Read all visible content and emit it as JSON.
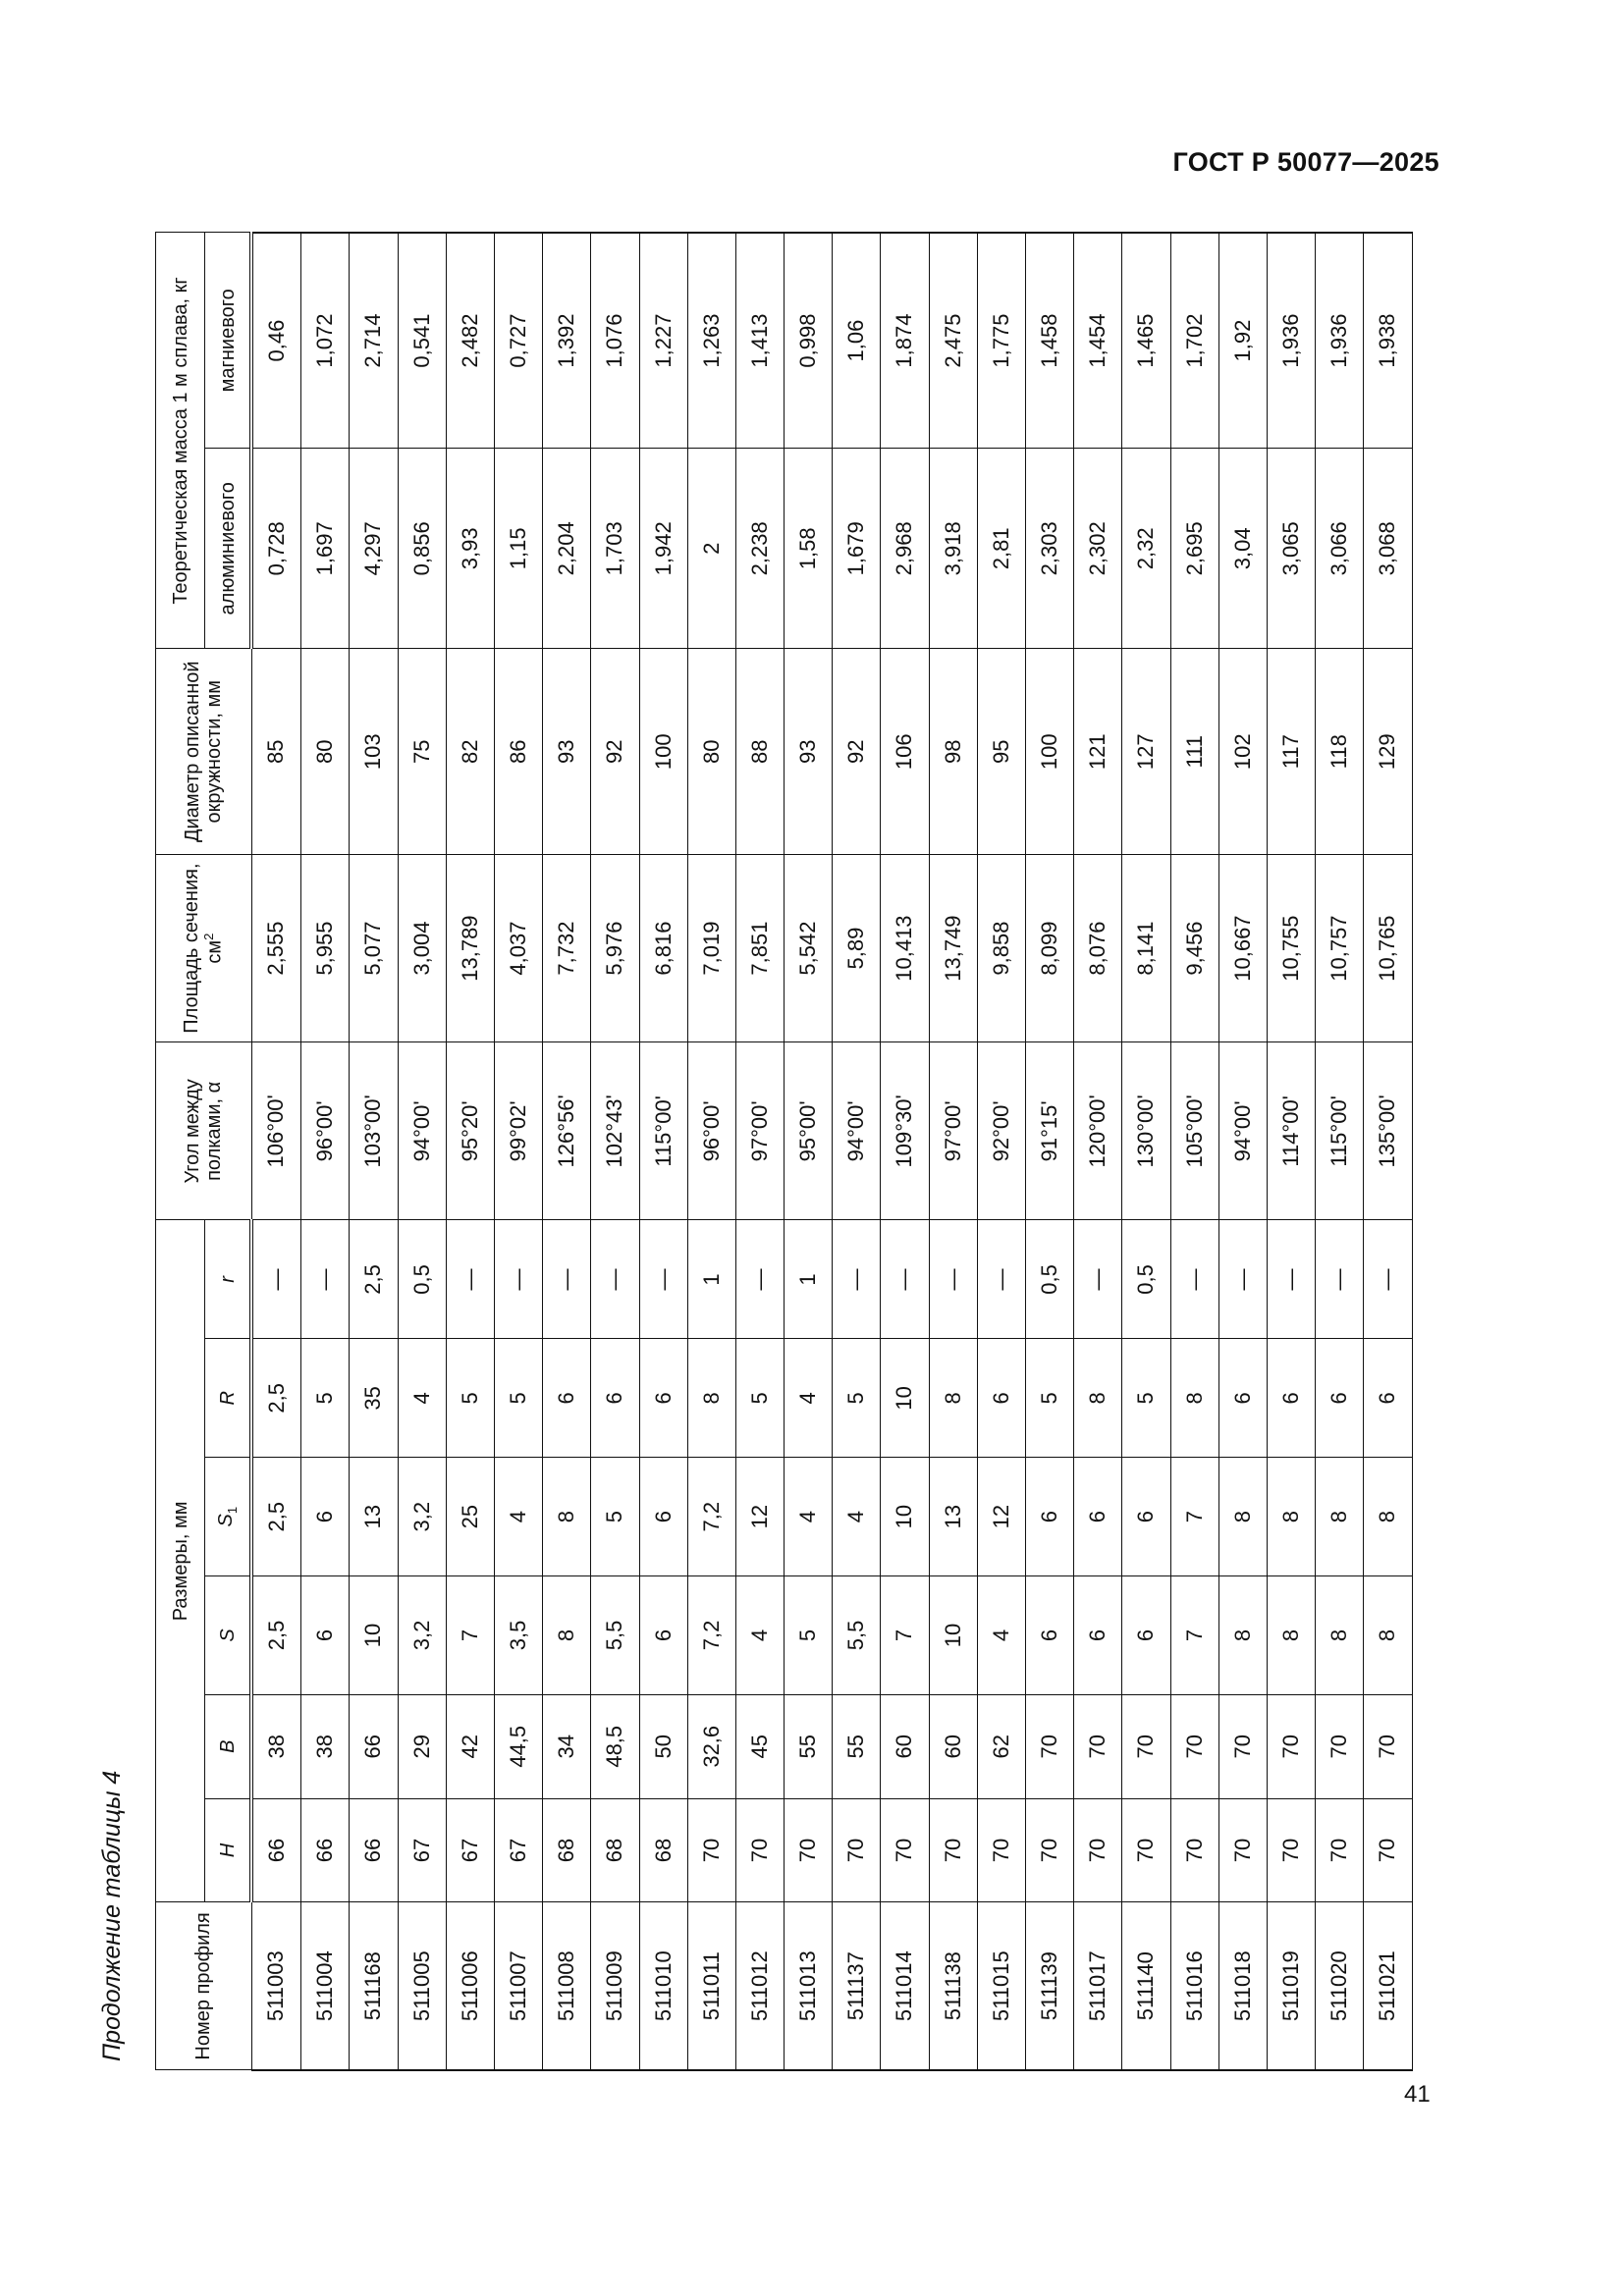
{
  "header": {
    "doc_id": "ГОСТ Р 50077—2025"
  },
  "caption": "Продолжение таблицы 4",
  "page_number": "41",
  "table": {
    "headers": {
      "profile_no": "Номер профиля",
      "dimensions_group": "Размеры, мм",
      "H": "H",
      "B": "B",
      "S": "S",
      "S1": "S",
      "S1_sub": "1",
      "R": "R",
      "r": "r",
      "angle": "Угол между полками, α",
      "area": "Площадь сечения, см",
      "area_sup": "2",
      "diameter": "Диаметр описанной окружности, мм",
      "mass_group": "Теоретическая масса 1 м сплава, кг",
      "aluminum": "алюминиевого",
      "magnesium": "магниевого"
    },
    "rows": [
      [
        "511003",
        "66",
        "38",
        "2,5",
        "2,5",
        "2,5",
        "—",
        "106°00'",
        "2,555",
        "85",
        "0,728",
        "0,46"
      ],
      [
        "511004",
        "66",
        "38",
        "6",
        "6",
        "5",
        "—",
        "96°00'",
        "5,955",
        "80",
        "1,697",
        "1,072"
      ],
      [
        "511168",
        "66",
        "66",
        "10",
        "13",
        "35",
        "2,5",
        "103°00'",
        "5,077",
        "103",
        "4,297",
        "2,714"
      ],
      [
        "511005",
        "67",
        "29",
        "3,2",
        "3,2",
        "4",
        "0,5",
        "94°00'",
        "3,004",
        "75",
        "0,856",
        "0,541"
      ],
      [
        "511006",
        "67",
        "42",
        "7",
        "25",
        "5",
        "—",
        "95°20'",
        "13,789",
        "82",
        "3,93",
        "2,482"
      ],
      [
        "511007",
        "67",
        "44,5",
        "3,5",
        "4",
        "5",
        "—",
        "99°02'",
        "4,037",
        "86",
        "1,15",
        "0,727"
      ],
      [
        "511008",
        "68",
        "34",
        "8",
        "8",
        "6",
        "—",
        "126°56'",
        "7,732",
        "93",
        "2,204",
        "1,392"
      ],
      [
        "511009",
        "68",
        "48,5",
        "5,5",
        "5",
        "6",
        "—",
        "102°43'",
        "5,976",
        "92",
        "1,703",
        "1,076"
      ],
      [
        "511010",
        "68",
        "50",
        "6",
        "6",
        "6",
        "—",
        "115°00'",
        "6,816",
        "100",
        "1,942",
        "1,227"
      ],
      [
        "511011",
        "70",
        "32,6",
        "7,2",
        "7,2",
        "8",
        "1",
        "96°00'",
        "7,019",
        "80",
        "2",
        "1,263"
      ],
      [
        "511012",
        "70",
        "45",
        "4",
        "12",
        "5",
        "—",
        "97°00'",
        "7,851",
        "88",
        "2,238",
        "1,413"
      ],
      [
        "511013",
        "70",
        "55",
        "5",
        "4",
        "4",
        "1",
        "95°00'",
        "5,542",
        "93",
        "1,58",
        "0,998"
      ],
      [
        "511137",
        "70",
        "55",
        "5,5",
        "4",
        "5",
        "—",
        "94°00'",
        "5,89",
        "92",
        "1,679",
        "1,06"
      ],
      [
        "511014",
        "70",
        "60",
        "7",
        "10",
        "10",
        "—",
        "109°30'",
        "10,413",
        "106",
        "2,968",
        "1,874"
      ],
      [
        "511138",
        "70",
        "60",
        "10",
        "13",
        "8",
        "—",
        "97°00'",
        "13,749",
        "98",
        "3,918",
        "2,475"
      ],
      [
        "511015",
        "70",
        "62",
        "4",
        "12",
        "6",
        "—",
        "92°00'",
        "9,858",
        "95",
        "2,81",
        "1,775"
      ],
      [
        "511139",
        "70",
        "70",
        "6",
        "6",
        "5",
        "0,5",
        "91°15'",
        "8,099",
        "100",
        "2,303",
        "1,458"
      ],
      [
        "511017",
        "70",
        "70",
        "6",
        "6",
        "8",
        "—",
        "120°00'",
        "8,076",
        "121",
        "2,302",
        "1,454"
      ],
      [
        "511140",
        "70",
        "70",
        "6",
        "6",
        "5",
        "0,5",
        "130°00'",
        "8,141",
        "127",
        "2,32",
        "1,465"
      ],
      [
        "511016",
        "70",
        "70",
        "7",
        "7",
        "8",
        "—",
        "105°00'",
        "9,456",
        "111",
        "2,695",
        "1,702"
      ],
      [
        "511018",
        "70",
        "70",
        "8",
        "8",
        "6",
        "—",
        "94°00'",
        "10,667",
        "102",
        "3,04",
        "1,92"
      ],
      [
        "511019",
        "70",
        "70",
        "8",
        "8",
        "6",
        "—",
        "114°00'",
        "10,755",
        "117",
        "3,065",
        "1,936"
      ],
      [
        "511020",
        "70",
        "70",
        "8",
        "8",
        "6",
        "—",
        "115°00'",
        "10,757",
        "118",
        "3,066",
        "1,936"
      ],
      [
        "511021",
        "70",
        "70",
        "8",
        "8",
        "6",
        "—",
        "135°00'",
        "10,765",
        "129",
        "3,068",
        "1,938"
      ]
    ]
  }
}
